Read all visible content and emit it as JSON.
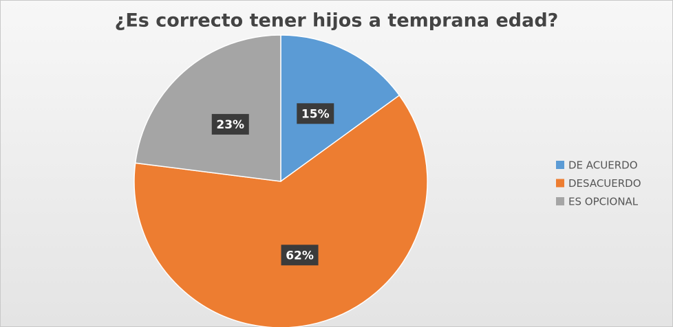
{
  "chart_data": {
    "type": "pie",
    "title": "¿Es correcto tener hijos a temprana edad?",
    "categories": [
      "DE ACUERDO",
      "DESACUERDO",
      "ES OPCIONAL"
    ],
    "values": [
      15,
      62,
      23
    ],
    "value_labels": [
      "15%",
      "62%",
      "23%"
    ],
    "colors": [
      "#5b9bd5",
      "#ed7d31",
      "#a5a5a5"
    ],
    "legend": "right"
  }
}
